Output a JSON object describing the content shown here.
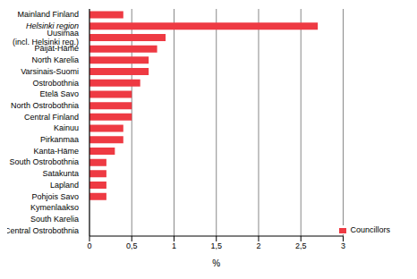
{
  "chart_data": {
    "type": "bar",
    "orientation": "horizontal",
    "categories": [
      "Mainland Finland",
      "Helsinki region",
      "Uusimaa (incl. Helsinki reg.)",
      "Päijät-Häme",
      "North Karelia",
      "Varsinais-Suomi",
      "Ostrobothnia",
      "Etelä Savo",
      "North Ostrobothnia",
      "Central Finland",
      "Kainuu",
      "Pirkanmaa",
      "Kanta-Häme",
      "South Ostrobothnia",
      "Satakunta",
      "Lapland",
      "Pohjois Savo",
      "Kymenlaakso",
      "South Karelia",
      "Central Ostrobothnia"
    ],
    "series": [
      {
        "name": "Councillors",
        "color": "#ee3a43",
        "values": [
          0.4,
          2.7,
          0.9,
          0.8,
          0.7,
          0.7,
          0.6,
          0.5,
          0.5,
          0.5,
          0.4,
          0.4,
          0.3,
          0.2,
          0.2,
          0.2,
          0.2,
          0,
          0,
          0
        ]
      }
    ],
    "xlim": [
      0,
      3
    ],
    "xticks": [
      0,
      {
        "value": 0.5,
        "label": "0,5"
      },
      1,
      {
        "value": 1.5,
        "label": "1,5"
      },
      2,
      {
        "value": 2.5,
        "label": "2,5"
      },
      3
    ],
    "xlabel": "%",
    "grid": true,
    "legend": "lower right"
  }
}
